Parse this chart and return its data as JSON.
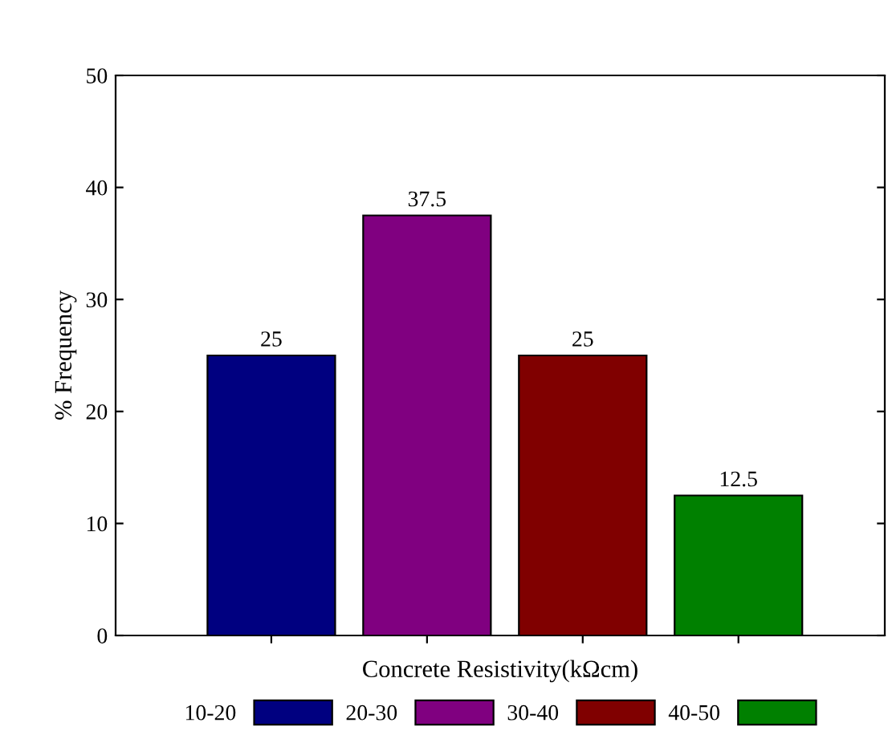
{
  "chart_data": {
    "type": "bar",
    "xlabel": "Concrete Resistivity(kΩcm)",
    "ylabel": "% Frequency",
    "categories": [
      null,
      null,
      null,
      null
    ],
    "series": [
      {
        "name": "10-20",
        "color": "#000080",
        "values": [
          25,
          null,
          null,
          null
        ]
      },
      {
        "name": "20-30",
        "color": "#800080",
        "values": [
          null,
          37.5,
          null,
          null
        ]
      },
      {
        "name": "30-40",
        "color": "#800000",
        "values": [
          null,
          null,
          25,
          null
        ]
      },
      {
        "name": "40-50",
        "color": "#008000",
        "values": [
          null,
          null,
          null,
          12.5
        ]
      }
    ],
    "ylim": [
      0,
      50
    ],
    "yticks": [
      0,
      10,
      20,
      30,
      40,
      50
    ],
    "data_labels": true,
    "legend": "bottom",
    "grid": false
  }
}
